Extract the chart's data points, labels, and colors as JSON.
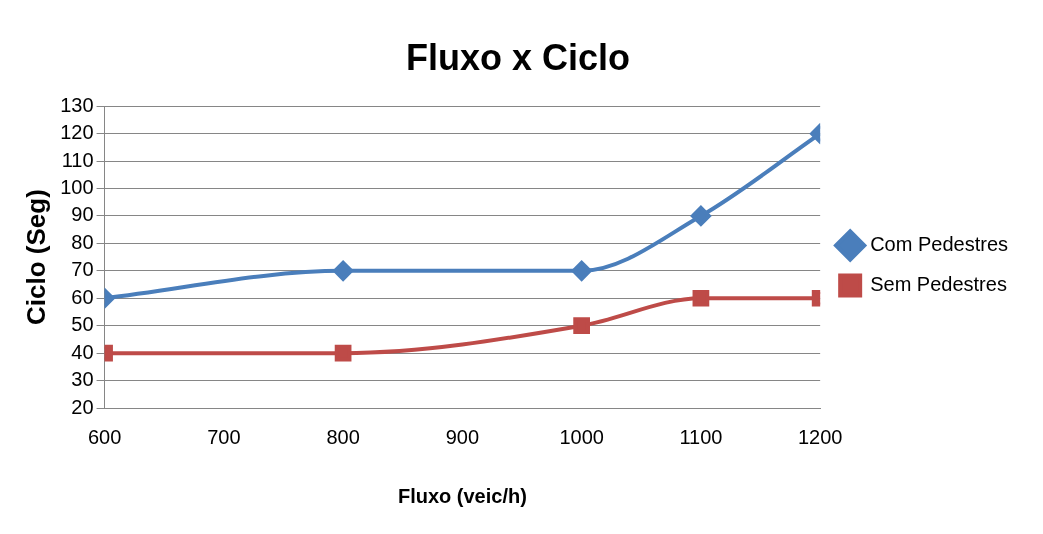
{
  "chart_data": {
    "type": "line",
    "title": "Fluxo x Ciclo",
    "xlabel": "Fluxo (veic/h)",
    "ylabel": "Ciclo (Seg)",
    "x": [
      600,
      800,
      1000,
      1100,
      1200
    ],
    "series": [
      {
        "name": "Com Pedestres",
        "color": "#4a7ebb",
        "marker": "diamond",
        "values": [
          60,
          70,
          70,
          90,
          120
        ]
      },
      {
        "name": "Sem Pedestres",
        "color": "#be4b48",
        "marker": "square",
        "values": [
          40,
          40,
          50,
          60,
          60
        ]
      }
    ],
    "xlim": [
      600,
      1200
    ],
    "xticks": [
      600,
      700,
      800,
      900,
      1000,
      1100,
      1200
    ],
    "ylim": [
      20,
      130
    ],
    "yticks": [
      20,
      30,
      40,
      50,
      60,
      70,
      80,
      90,
      100,
      110,
      120,
      130
    ],
    "grid": "y",
    "legend": "right",
    "line_style": "solid"
  }
}
